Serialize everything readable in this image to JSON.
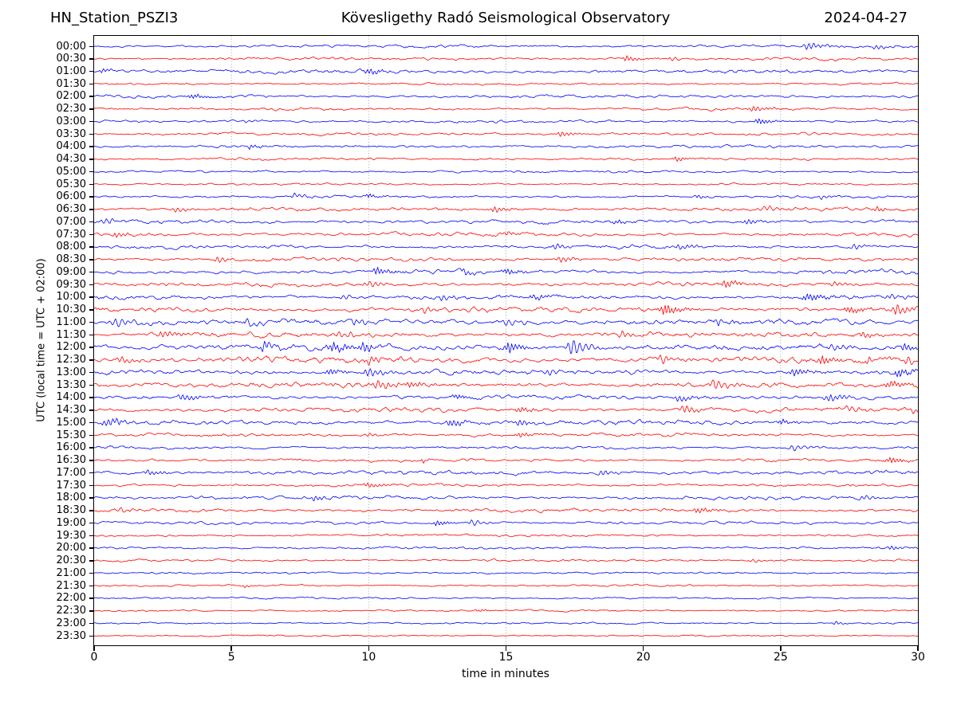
{
  "chart_data": {
    "type": "line",
    "chart_kind": "helicorder-daily-seismogram",
    "station": "HN_Station_PSZI3",
    "title": "Kövesligethy Radó Seismological Observatory",
    "date": "2024-04-27",
    "xlabel": "time in minutes",
    "ylabel": "UTC (local time = UTC + 02:00)",
    "xlim": [
      0,
      30
    ],
    "x_ticks": [
      0,
      5,
      10,
      15,
      20,
      25,
      30
    ],
    "grid": {
      "vertical_gridlines_min": [
        5,
        10,
        15,
        20,
        25
      ],
      "style": "dotted",
      "color": "#999999",
      "horizontal": false
    },
    "legend": "none",
    "row_duration_min": 30,
    "n_rows": 48,
    "trace_colors": {
      "hour_rows": "#0000ff",
      "half_hour_rows": "#ff0000"
    },
    "events_format": "[center_minute, peak_amplitude_px, duration_min]",
    "rows": [
      {
        "label": "00:00",
        "color": "#0000ff",
        "noise_amp": 1.1,
        "events": [
          [
            26.0,
            4.0,
            0.5
          ],
          [
            28.5,
            2.5,
            0.4
          ]
        ]
      },
      {
        "label": "00:30",
        "color": "#ff0000",
        "noise_amp": 1.1,
        "events": [
          [
            19.4,
            3.5,
            0.4
          ],
          [
            21.0,
            2.0,
            0.3
          ]
        ]
      },
      {
        "label": "01:00",
        "color": "#0000ff",
        "noise_amp": 1.4,
        "events": [
          [
            0.3,
            2.5,
            0.3
          ],
          [
            10.0,
            3.0,
            0.4
          ]
        ]
      },
      {
        "label": "01:30",
        "color": "#ff0000",
        "noise_amp": 0.9,
        "events": []
      },
      {
        "label": "02:00",
        "color": "#0000ff",
        "noise_amp": 1.1,
        "events": [
          [
            3.6,
            2.5,
            0.5
          ]
        ]
      },
      {
        "label": "02:30",
        "color": "#ff0000",
        "noise_amp": 1.0,
        "events": [
          [
            24.0,
            3.0,
            0.5
          ]
        ]
      },
      {
        "label": "03:00",
        "color": "#0000ff",
        "noise_amp": 1.0,
        "events": [
          [
            5.5,
            2.0,
            0.3
          ],
          [
            24.2,
            3.5,
            0.4
          ]
        ]
      },
      {
        "label": "03:30",
        "color": "#ff0000",
        "noise_amp": 1.0,
        "events": [
          [
            17.0,
            3.0,
            0.4
          ]
        ]
      },
      {
        "label": "04:00",
        "color": "#0000ff",
        "noise_amp": 1.0,
        "events": [
          [
            5.7,
            2.5,
            0.3
          ]
        ]
      },
      {
        "label": "04:30",
        "color": "#ff0000",
        "noise_amp": 0.9,
        "events": [
          [
            21.2,
            3.0,
            0.3
          ]
        ]
      },
      {
        "label": "05:00",
        "color": "#0000ff",
        "noise_amp": 0.9,
        "events": []
      },
      {
        "label": "05:30",
        "color": "#ff0000",
        "noise_amp": 0.7,
        "events": []
      },
      {
        "label": "06:00",
        "color": "#0000ff",
        "noise_amp": 1.0,
        "events": [
          [
            7.3,
            2.5,
            0.4
          ],
          [
            10.0,
            2.5,
            0.3
          ],
          [
            22.0,
            2.0,
            0.3
          ],
          [
            26.5,
            2.0,
            0.3
          ]
        ]
      },
      {
        "label": "06:30",
        "color": "#ff0000",
        "noise_amp": 1.3,
        "events": [
          [
            3.0,
            3.0,
            0.4
          ],
          [
            14.6,
            3.5,
            0.4
          ],
          [
            24.5,
            3.0,
            0.4
          ],
          [
            28.5,
            3.0,
            0.3
          ]
        ]
      },
      {
        "label": "07:00",
        "color": "#0000ff",
        "noise_amp": 1.4,
        "events": [
          [
            0.4,
            3.0,
            0.4
          ],
          [
            19.0,
            2.5,
            0.3
          ],
          [
            23.8,
            3.0,
            0.4
          ]
        ]
      },
      {
        "label": "07:30",
        "color": "#ff0000",
        "noise_amp": 1.3,
        "events": [
          [
            0.8,
            3.0,
            0.3
          ],
          [
            15.0,
            2.5,
            0.4
          ]
        ]
      },
      {
        "label": "08:00",
        "color": "#0000ff",
        "noise_amp": 1.3,
        "events": [
          [
            16.8,
            3.0,
            0.4
          ],
          [
            21.3,
            3.5,
            0.4
          ],
          [
            27.7,
            3.0,
            0.4
          ]
        ]
      },
      {
        "label": "08:30",
        "color": "#ff0000",
        "noise_amp": 1.4,
        "events": [
          [
            4.5,
            3.0,
            0.4
          ],
          [
            17.0,
            3.0,
            0.5
          ]
        ]
      },
      {
        "label": "09:00",
        "color": "#0000ff",
        "noise_amp": 1.5,
        "events": [
          [
            10.3,
            4.5,
            0.4
          ],
          [
            13.5,
            3.5,
            0.3
          ],
          [
            15.0,
            3.5,
            0.4
          ]
        ]
      },
      {
        "label": "09:30",
        "color": "#ff0000",
        "noise_amp": 1.5,
        "events": [
          [
            10.0,
            3.5,
            0.5
          ],
          [
            23.0,
            3.5,
            0.5
          ],
          [
            27.0,
            3.0,
            0.4
          ]
        ]
      },
      {
        "label": "10:00",
        "color": "#0000ff",
        "noise_amp": 1.6,
        "events": [
          [
            9.1,
            3.0,
            0.3
          ],
          [
            12.7,
            3.5,
            0.4
          ],
          [
            16.0,
            3.0,
            0.5
          ],
          [
            26.0,
            4.0,
            0.6
          ],
          [
            29.0,
            3.5,
            0.4
          ]
        ]
      },
      {
        "label": "10:30",
        "color": "#ff0000",
        "noise_amp": 1.8,
        "events": [
          [
            12.0,
            3.5,
            0.5
          ],
          [
            20.8,
            6.0,
            0.5
          ],
          [
            27.5,
            4.0,
            0.5
          ],
          [
            29.2,
            6.0,
            0.5
          ]
        ]
      },
      {
        "label": "11:00",
        "color": "#0000ff",
        "noise_amp": 2.1,
        "events": [
          [
            0.8,
            4.5,
            0.7
          ],
          [
            5.6,
            4.0,
            0.3
          ],
          [
            9.5,
            3.5,
            0.5
          ],
          [
            15.0,
            3.5,
            0.5
          ],
          [
            22.7,
            3.5,
            0.4
          ]
        ]
      },
      {
        "label": "11:30",
        "color": "#ff0000",
        "noise_amp": 1.9,
        "events": [
          [
            2.5,
            4.0,
            0.6
          ],
          [
            9.0,
            4.0,
            0.5
          ],
          [
            19.2,
            4.0,
            0.4
          ],
          [
            28.0,
            3.5,
            0.4
          ]
        ]
      },
      {
        "label": "12:00",
        "color": "#0000ff",
        "noise_amp": 2.1,
        "events": [
          [
            6.2,
            6.5,
            0.3
          ],
          [
            8.7,
            5.0,
            0.6
          ],
          [
            9.8,
            5.0,
            0.4
          ],
          [
            15.1,
            6.5,
            0.4
          ],
          [
            17.4,
            10.0,
            0.5
          ],
          [
            26.9,
            4.0,
            0.4
          ],
          [
            29.5,
            5.0,
            0.3
          ]
        ]
      },
      {
        "label": "12:30",
        "color": "#ff0000",
        "noise_amp": 2.1,
        "events": [
          [
            1.0,
            4.0,
            0.5
          ],
          [
            10.0,
            4.0,
            0.4
          ],
          [
            20.7,
            5.0,
            0.4
          ],
          [
            26.5,
            4.5,
            0.4
          ],
          [
            28.2,
            4.0,
            0.3
          ],
          [
            29.6,
            5.0,
            0.3
          ]
        ]
      },
      {
        "label": "13:00",
        "color": "#0000ff",
        "noise_amp": 1.9,
        "events": [
          [
            8.6,
            4.0,
            0.4
          ],
          [
            10.0,
            5.0,
            0.5
          ],
          [
            16.5,
            4.0,
            0.4
          ],
          [
            25.5,
            4.0,
            0.5
          ],
          [
            29.3,
            4.5,
            0.4
          ]
        ]
      },
      {
        "label": "13:30",
        "color": "#ff0000",
        "noise_amp": 1.9,
        "events": [
          [
            10.4,
            5.0,
            0.6
          ],
          [
            11.5,
            4.0,
            0.4
          ],
          [
            22.6,
            6.0,
            0.4
          ],
          [
            29.0,
            4.0,
            0.5
          ]
        ]
      },
      {
        "label": "14:00",
        "color": "#0000ff",
        "noise_amp": 1.5,
        "events": [
          [
            3.2,
            4.0,
            0.5
          ],
          [
            13.2,
            3.0,
            0.4
          ],
          [
            21.3,
            3.5,
            0.5
          ],
          [
            26.8,
            4.0,
            0.6
          ]
        ]
      },
      {
        "label": "14:30",
        "color": "#ff0000",
        "noise_amp": 1.6,
        "events": [
          [
            15.5,
            3.0,
            0.4
          ],
          [
            21.5,
            5.0,
            0.4
          ],
          [
            27.5,
            3.5,
            0.4
          ],
          [
            29.8,
            4.0,
            0.3
          ]
        ]
      },
      {
        "label": "15:00",
        "color": "#0000ff",
        "noise_amp": 1.7,
        "events": [
          [
            0.5,
            4.5,
            0.6
          ],
          [
            13.0,
            4.0,
            0.5
          ],
          [
            15.5,
            3.5,
            0.4
          ],
          [
            25.0,
            3.0,
            0.4
          ]
        ]
      },
      {
        "label": "15:30",
        "color": "#ff0000",
        "noise_amp": 1.2,
        "events": [
          [
            10.0,
            2.5,
            0.3
          ],
          [
            15.5,
            3.0,
            0.4
          ]
        ]
      },
      {
        "label": "16:00",
        "color": "#0000ff",
        "noise_amp": 1.1,
        "events": [
          [
            25.5,
            3.5,
            0.5
          ]
        ]
      },
      {
        "label": "16:30",
        "color": "#ff0000",
        "noise_amp": 1.2,
        "events": [
          [
            12.0,
            2.0,
            0.3
          ],
          [
            29.0,
            3.5,
            0.4
          ]
        ]
      },
      {
        "label": "17:00",
        "color": "#0000ff",
        "noise_amp": 1.5,
        "events": [
          [
            2.0,
            3.0,
            0.5
          ],
          [
            18.5,
            3.0,
            0.4
          ]
        ]
      },
      {
        "label": "17:30",
        "color": "#ff0000",
        "noise_amp": 1.1,
        "events": [
          [
            10.0,
            3.0,
            0.4
          ]
        ]
      },
      {
        "label": "18:00",
        "color": "#0000ff",
        "noise_amp": 1.3,
        "events": [
          [
            8.0,
            2.5,
            0.4
          ],
          [
            28.0,
            3.0,
            0.4
          ]
        ]
      },
      {
        "label": "18:30",
        "color": "#ff0000",
        "noise_amp": 1.3,
        "events": [
          [
            1.0,
            3.0,
            0.4
          ],
          [
            22.0,
            3.0,
            0.5
          ]
        ]
      },
      {
        "label": "19:00",
        "color": "#0000ff",
        "noise_amp": 1.1,
        "events": [
          [
            12.5,
            3.0,
            0.4
          ],
          [
            13.8,
            3.5,
            0.4
          ]
        ]
      },
      {
        "label": "19:30",
        "color": "#ff0000",
        "noise_amp": 0.9,
        "events": []
      },
      {
        "label": "20:00",
        "color": "#0000ff",
        "noise_amp": 0.9,
        "events": [
          [
            29.0,
            2.5,
            0.3
          ]
        ]
      },
      {
        "label": "20:30",
        "color": "#ff0000",
        "noise_amp": 0.9,
        "events": [
          [
            24.0,
            2.0,
            0.4
          ]
        ]
      },
      {
        "label": "21:00",
        "color": "#0000ff",
        "noise_amp": 0.75,
        "events": []
      },
      {
        "label": "21:30",
        "color": "#ff0000",
        "noise_amp": 0.7,
        "events": [
          [
            5.5,
            1.5,
            0.3
          ]
        ]
      },
      {
        "label": "22:00",
        "color": "#0000ff",
        "noise_amp": 0.7,
        "events": []
      },
      {
        "label": "22:30",
        "color": "#ff0000",
        "noise_amp": 0.7,
        "events": [
          [
            14.0,
            1.5,
            0.3
          ]
        ]
      },
      {
        "label": "23:00",
        "color": "#0000ff",
        "noise_amp": 0.7,
        "events": [
          [
            27.0,
            2.0,
            0.3
          ]
        ]
      },
      {
        "label": "23:30",
        "color": "#ff0000",
        "noise_amp": 0.6,
        "events": []
      }
    ]
  }
}
